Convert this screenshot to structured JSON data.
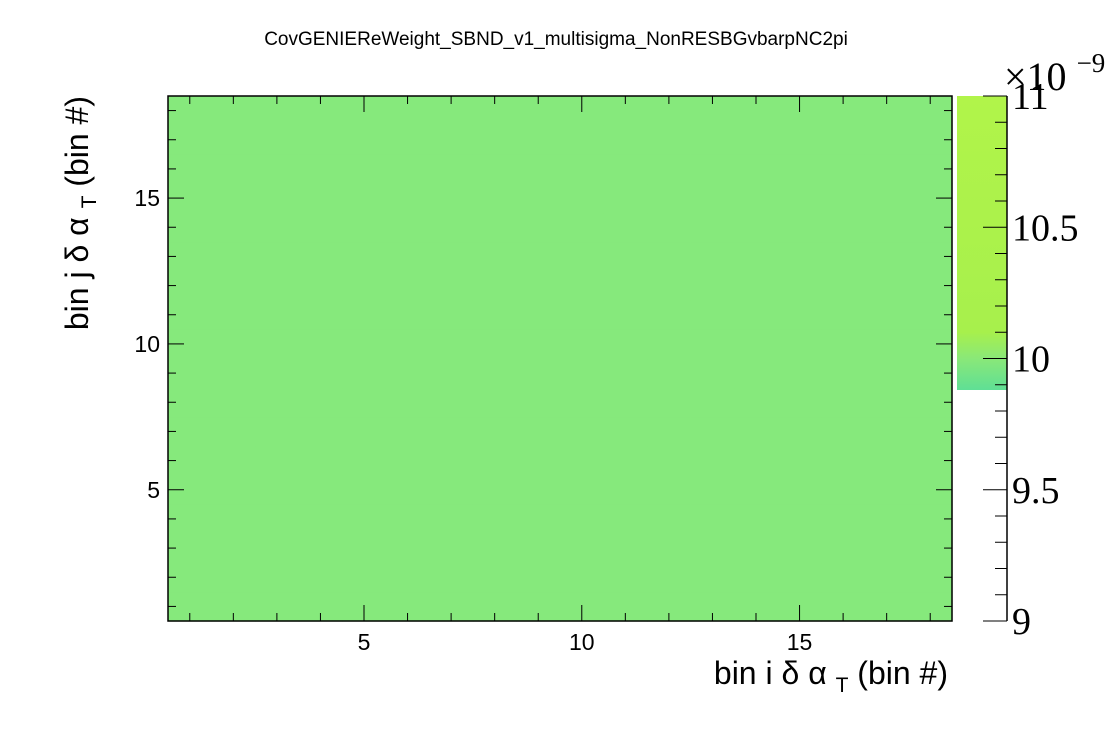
{
  "chart_data": {
    "type": "heatmap",
    "title": "CovGENIEReWeight_SBND_v1_multisigma_NonRESBGvbarpNC2pi",
    "xlabel": {
      "prefix": "bin i δ α",
      "subscript": "T",
      "suffix": " (bin #)"
    },
    "ylabel": {
      "prefix": "bin j δ α",
      "subscript": "T",
      "suffix": " (bin #)"
    },
    "xlim": [
      0.5,
      18.5
    ],
    "ylim": [
      0.5,
      18.5
    ],
    "x_ticks": [
      5,
      10,
      15
    ],
    "y_ticks": [
      5,
      10,
      15
    ],
    "x_tick_labels": [
      "5",
      "10",
      "15"
    ],
    "y_tick_labels": [
      "5",
      "10",
      "15"
    ],
    "n_bins_x": 18,
    "n_bins_y": 18,
    "cell_value_e9": 9.9,
    "cell_color": "#86e97c",
    "colorbar": {
      "zlim": [
        9,
        11
      ],
      "ticks": [
        9,
        9.5,
        10,
        10.5,
        11
      ],
      "tick_labels": [
        "9",
        "9.5",
        "10",
        "10.5",
        "11"
      ],
      "multiplier": "×10",
      "exponent": "−9",
      "filled_from": 9.88,
      "stops": [
        {
          "value": 9.88,
          "color": "#5fdf95"
        },
        {
          "value": 10.0,
          "color": "#8ae878"
        },
        {
          "value": 10.1,
          "color": "#a7f04c"
        },
        {
          "value": 11.0,
          "color": "#b1f44a"
        }
      ]
    },
    "grid": false,
    "legend": "none"
  }
}
